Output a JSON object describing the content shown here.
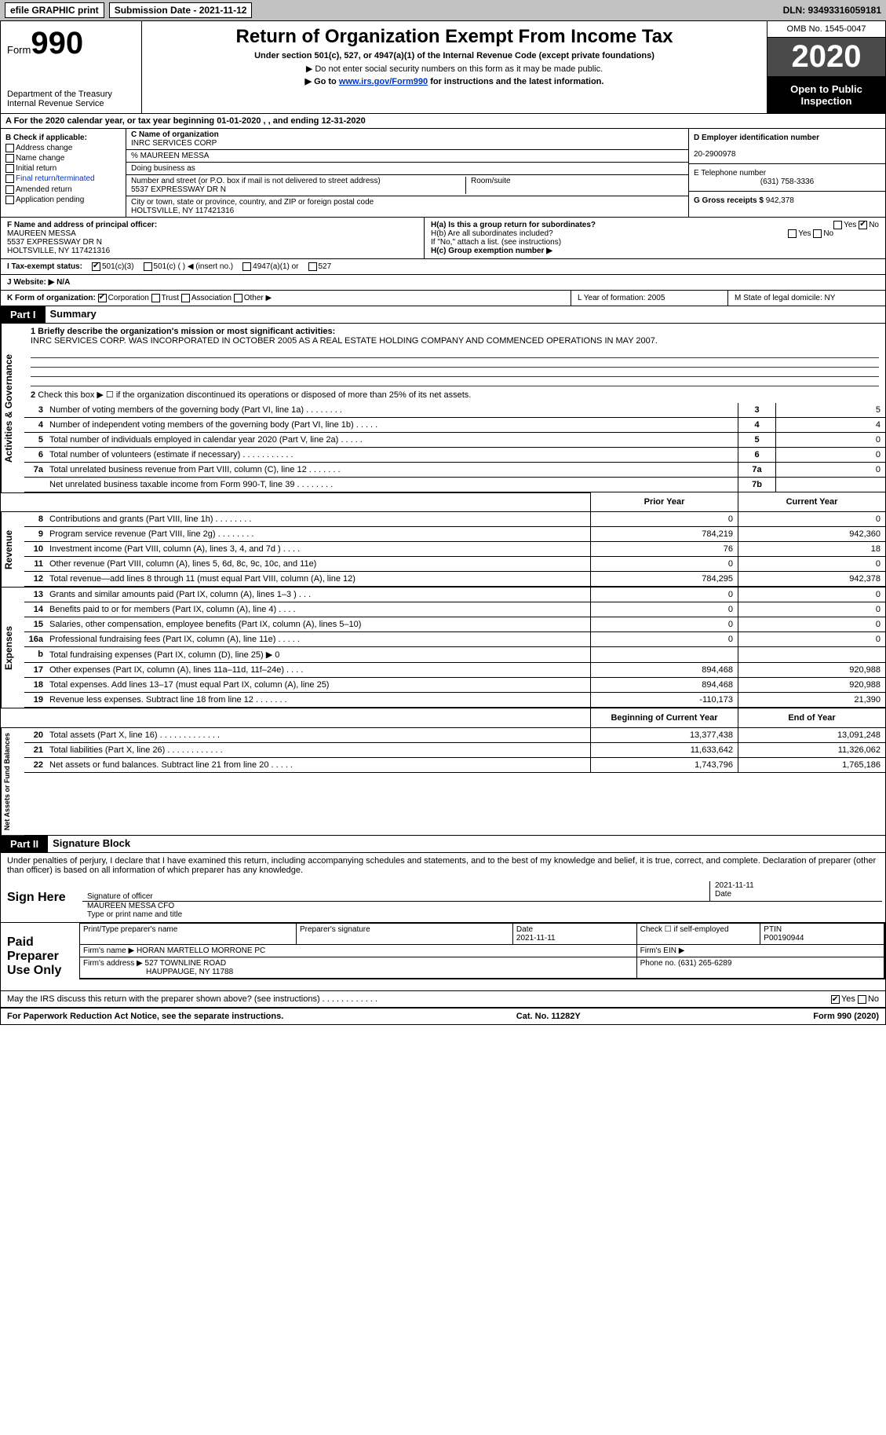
{
  "top_bar": {
    "efile": "efile GRAPHIC print",
    "submission_label": "Submission Date - 2021-11-12",
    "dln": "DLN: 93493316059181"
  },
  "header": {
    "form_label": "Form",
    "form_number": "990",
    "dept": "Department of the Treasury\nInternal Revenue Service",
    "title": "Return of Organization Exempt From Income Tax",
    "subtitle": "Under section 501(c), 527, or 4947(a)(1) of the Internal Revenue Code (except private foundations)",
    "note1": "▶ Do not enter social security numbers on this form as it may be made public.",
    "note2_pre": "▶ Go to ",
    "note2_link": "www.irs.gov/Form990",
    "note2_post": " for instructions and the latest information.",
    "omb": "OMB No. 1545-0047",
    "year": "2020",
    "open": "Open to Public Inspection"
  },
  "row_a": "A For the 2020 calendar year, or tax year beginning 01-01-2020 , , and ending 12-31-2020",
  "col_b": {
    "title": "B Check if applicable:",
    "items": [
      "Address change",
      "Name change",
      "Initial return",
      "Final return/terminated",
      "Amended return",
      "Application pending"
    ]
  },
  "col_c": {
    "name_label": "C Name of organization",
    "name": "INRC SERVICES CORP",
    "care_of": "% MAUREEN MESSA",
    "dba_label": "Doing business as",
    "addr_label": "Number and street (or P.O. box if mail is not delivered to street address)",
    "room_label": "Room/suite",
    "addr": "5537 EXPRESSWAY DR N",
    "city_label": "City or town, state or province, country, and ZIP or foreign postal code",
    "city": "HOLTSVILLE, NY  117421316"
  },
  "col_d": {
    "ein_label": "D Employer identification number",
    "ein": "20-2900978",
    "phone_label": "E Telephone number",
    "phone": "(631) 758-3336",
    "receipts_label": "G Gross receipts $",
    "receipts": "942,378"
  },
  "row_f": {
    "label": "F Name and address of principal officer:",
    "name": "MAUREEN MESSA",
    "addr1": "5537 EXPRESSWAY DR N",
    "addr2": "HOLTSVILLE, NY  117421316"
  },
  "row_h": {
    "ha": "H(a)  Is this a group return for subordinates?",
    "hb": "H(b)  Are all subordinates included?",
    "hb_note": "If \"No,\" attach a list. (see instructions)",
    "hc": "H(c)  Group exemption number ▶"
  },
  "row_i": {
    "label": "I  Tax-exempt status:",
    "opts": [
      "501(c)(3)",
      "501(c) (  )  ◀ (insert no.)",
      "4947(a)(1) or",
      "527"
    ]
  },
  "row_j": "J  Website: ▶  N/A",
  "row_k": {
    "label": "K Form of organization:",
    "opts": [
      "Corporation",
      "Trust",
      "Association",
      "Other ▶"
    ]
  },
  "row_l": "L Year of formation: 2005",
  "row_m": "M State of legal domicile: NY",
  "part1": {
    "header": "Part I",
    "title": "Summary",
    "q1_label": "1  Briefly describe the organization's mission or most significant activities:",
    "q1_text": "INRC SERVICES CORP. WAS INCORPORATED IN OCTOBER 2005 AS A REAL ESTATE HOLDING COMPANY AND COMMENCED OPERATIONS IN MAY 2007.",
    "q2": "Check this box ▶ ☐  if the organization discontinued its operations or disposed of more than 25% of its net assets.",
    "governance_rows": [
      {
        "num": "3",
        "text": "Number of voting members of the governing body (Part VI, line 1a)  .  .  .  .  .  .  .  .",
        "box": "3",
        "val": "5"
      },
      {
        "num": "4",
        "text": "Number of independent voting members of the governing body (Part VI, line 1b)  .  .  .  .  .",
        "box": "4",
        "val": "4"
      },
      {
        "num": "5",
        "text": "Total number of individuals employed in calendar year 2020 (Part V, line 2a)  .  .  .  .  .",
        "box": "5",
        "val": "0"
      },
      {
        "num": "6",
        "text": "Total number of volunteers (estimate if necessary)  .  .  .  .  .  .  .  .  .  .  .",
        "box": "6",
        "val": "0"
      },
      {
        "num": "7a",
        "text": "Total unrelated business revenue from Part VIII, column (C), line 12  .  .  .  .  .  .  .",
        "box": "7a",
        "val": "0"
      },
      {
        "num": "",
        "text": "Net unrelated business taxable income from Form 990-T, line 39  .  .  .  .  .  .  .  .",
        "box": "7b",
        "val": ""
      }
    ],
    "prior_label": "Prior Year",
    "current_label": "Current Year",
    "revenue_rows": [
      {
        "num": "8",
        "text": "Contributions and grants (Part VIII, line 1h)  .  .  .  .  .  .  .  .",
        "p": "0",
        "c": "0"
      },
      {
        "num": "9",
        "text": "Program service revenue (Part VIII, line 2g)  .  .  .  .  .  .  .  .",
        "p": "784,219",
        "c": "942,360"
      },
      {
        "num": "10",
        "text": "Investment income (Part VIII, column (A), lines 3, 4, and 7d )  .  .  .  .",
        "p": "76",
        "c": "18"
      },
      {
        "num": "11",
        "text": "Other revenue (Part VIII, column (A), lines 5, 6d, 8c, 9c, 10c, and 11e)",
        "p": "0",
        "c": "0"
      },
      {
        "num": "12",
        "text": "Total revenue—add lines 8 through 11 (must equal Part VIII, column (A), line 12)",
        "p": "784,295",
        "c": "942,378"
      }
    ],
    "expense_rows": [
      {
        "num": "13",
        "text": "Grants and similar amounts paid (Part IX, column (A), lines 1–3 )  .  .  .",
        "p": "0",
        "c": "0"
      },
      {
        "num": "14",
        "text": "Benefits paid to or for members (Part IX, column (A), line 4)  .  .  .  .",
        "p": "0",
        "c": "0"
      },
      {
        "num": "15",
        "text": "Salaries, other compensation, employee benefits (Part IX, column (A), lines 5–10)",
        "p": "0",
        "c": "0"
      },
      {
        "num": "16a",
        "text": "Professional fundraising fees (Part IX, column (A), line 11e)  .  .  .  .  .",
        "p": "0",
        "c": "0"
      },
      {
        "num": "b",
        "text": "Total fundraising expenses (Part IX, column (D), line 25) ▶ 0",
        "p": "grey",
        "c": "grey"
      },
      {
        "num": "17",
        "text": "Other expenses (Part IX, column (A), lines 11a–11d, 11f–24e)  .  .  .  .",
        "p": "894,468",
        "c": "920,988"
      },
      {
        "num": "18",
        "text": "Total expenses. Add lines 13–17 (must equal Part IX, column (A), line 25)",
        "p": "894,468",
        "c": "920,988"
      },
      {
        "num": "19",
        "text": "Revenue less expenses. Subtract line 18 from line 12  .  .  .  .  .  .  .",
        "p": "-110,173",
        "c": "21,390"
      }
    ],
    "begin_label": "Beginning of Current Year",
    "end_label": "End of Year",
    "netasset_rows": [
      {
        "num": "20",
        "text": "Total assets (Part X, line 16)  .  .  .  .  .  .  .  .  .  .  .  .  .",
        "p": "13,377,438",
        "c": "13,091,248"
      },
      {
        "num": "21",
        "text": "Total liabilities (Part X, line 26)  .  .  .  .  .  .  .  .  .  .  .  .",
        "p": "11,633,642",
        "c": "11,326,062"
      },
      {
        "num": "22",
        "text": "Net assets or fund balances. Subtract line 21 from line 20  .  .  .  .  .",
        "p": "1,743,796",
        "c": "1,765,186"
      }
    ]
  },
  "part2": {
    "header": "Part II",
    "title": "Signature Block",
    "declaration": "Under penalties of perjury, I declare that I have examined this return, including accompanying schedules and statements, and to the best of my knowledge and belief, it is true, correct, and complete. Declaration of preparer (other than officer) is based on all information of which preparer has any knowledge.",
    "sign_here": "Sign Here",
    "sig_officer": "Signature of officer",
    "date": "Date",
    "sig_date": "2021-11-11",
    "officer_name": "MAUREEN MESSA CFO",
    "type_name": "Type or print name and title",
    "paid_label": "Paid Preparer Use Only",
    "prep_name_label": "Print/Type preparer's name",
    "prep_sig_label": "Preparer's signature",
    "prep_date_label": "Date",
    "prep_date": "2021-11-11",
    "self_emp": "Check ☐ if self-employed",
    "ptin_label": "PTIN",
    "ptin": "P00190944",
    "firm_name_label": "Firm's name  ▶",
    "firm_name": "HORAN MARTELLO MORRONE PC",
    "firm_ein_label": "Firm's EIN ▶",
    "firm_addr_label": "Firm's address ▶",
    "firm_addr": "527 TOWNLINE ROAD",
    "firm_city": "HAUPPAUGE, NY  11788",
    "firm_phone_label": "Phone no.",
    "firm_phone": "(631) 265-6289",
    "discuss": "May the IRS discuss this return with the preparer shown above? (see instructions)  .  .  .  .  .  .  .  .  .  .  .  .",
    "yes": "Yes",
    "no": "No"
  },
  "footer": {
    "left": "For Paperwork Reduction Act Notice, see the separate instructions.",
    "mid": "Cat. No. 11282Y",
    "right": "Form 990 (2020)"
  },
  "colors": {
    "top_bar_bg": "#c2c2c2",
    "black": "#000000",
    "link": "#0033cc",
    "grey_fill": "#cccccc"
  }
}
